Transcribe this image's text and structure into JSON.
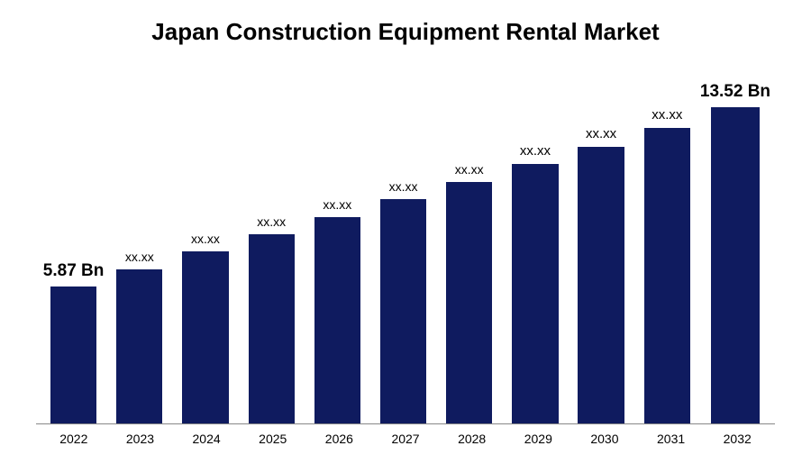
{
  "chart": {
    "type": "bar",
    "title": "Japan Construction Equipment Rental Market",
    "title_fontsize": 26,
    "title_fontweight": "bold",
    "title_color": "#000000",
    "background_color": "#ffffff",
    "axis_line_color": "#888888",
    "categories": [
      "2022",
      "2023",
      "2024",
      "2025",
      "2026",
      "2027",
      "2028",
      "2029",
      "2030",
      "2031",
      "2032"
    ],
    "values": [
      5.87,
      6.6,
      7.35,
      8.1,
      8.85,
      9.6,
      10.35,
      11.1,
      11.85,
      12.65,
      13.52
    ],
    "value_labels": [
      "5.87 Bn",
      "xx.xx",
      "xx.xx",
      "xx.xx",
      "xx.xx",
      "xx.xx",
      "xx.xx",
      "xx.xx",
      "xx.xx",
      "xx.xx",
      "13.52 Bn"
    ],
    "label_fontsizes": [
      19,
      14,
      14,
      14,
      14,
      14,
      14,
      15,
      15,
      15,
      19
    ],
    "label_fontweights": [
      "bold",
      "normal",
      "normal",
      "normal",
      "normal",
      "normal",
      "normal",
      "normal",
      "normal",
      "normal",
      "bold"
    ],
    "bar_color": "#0f1b5f",
    "xaxis_fontsize": 14,
    "xaxis_color": "#000000",
    "bar_width_pct": 70,
    "y_max": 15.0
  }
}
